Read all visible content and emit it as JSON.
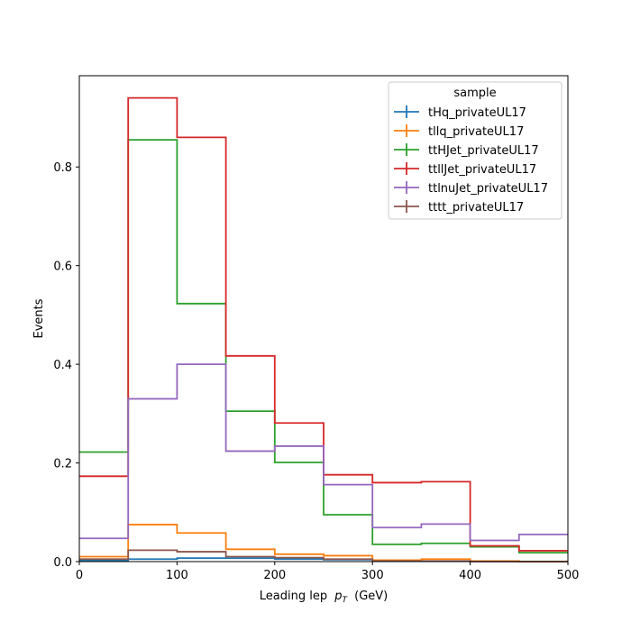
{
  "chart_data": {
    "type": "line",
    "drawstyle": "step-histogram",
    "xlabel": "Leading lep",
    "xlabel_math": "p",
    "xlabel_sub": "T",
    "xlabel_unit": "(GeV)",
    "ylabel": "Events",
    "xlim": [
      0,
      500
    ],
    "ylim": [
      0,
      0.985
    ],
    "xticks": [
      0,
      100,
      200,
      300,
      400,
      500
    ],
    "yticks": [
      0.0,
      0.2,
      0.4,
      0.6,
      0.8
    ],
    "ytick_labels": [
      "0.0",
      "0.2",
      "0.4",
      "0.6",
      "0.8"
    ],
    "bin_edges": [
      0,
      50,
      100,
      150,
      200,
      250,
      300,
      350,
      400,
      450,
      500
    ],
    "grid": false,
    "legend": {
      "title": "sample",
      "placement": "top-right"
    },
    "series": [
      {
        "name": "tHq_privateUL17",
        "color": "#1f77b4",
        "values": [
          0.002,
          0.005,
          0.007,
          0.007,
          0.005,
          0.004,
          0.001,
          0.001,
          0.001,
          0.0
        ]
      },
      {
        "name": "tllq_privateUL17",
        "color": "#ff7f0e",
        "values": [
          0.01,
          0.075,
          0.058,
          0.025,
          0.015,
          0.012,
          0.003,
          0.005,
          0.001,
          0.0
        ]
      },
      {
        "name": "ttHJet_privateUL17",
        "color": "#2ca02c",
        "values": [
          0.222,
          0.855,
          0.523,
          0.305,
          0.201,
          0.095,
          0.035,
          0.037,
          0.03,
          0.018
        ]
      },
      {
        "name": "ttllJet_privateUL17",
        "color": "#d62728",
        "values": [
          0.173,
          0.94,
          0.86,
          0.417,
          0.281,
          0.176,
          0.16,
          0.162,
          0.032,
          0.022
        ]
      },
      {
        "name": "ttlnuJet_privateUL17",
        "color": "#9467bd",
        "values": [
          0.047,
          0.33,
          0.4,
          0.224,
          0.234,
          0.156,
          0.069,
          0.076,
          0.043,
          0.055
        ]
      },
      {
        "name": "tttt_privateUL17",
        "color": "#8c564b",
        "values": [
          0.005,
          0.023,
          0.02,
          0.01,
          0.008,
          0.005,
          0.001,
          0.001,
          0.0,
          0.0
        ]
      }
    ]
  }
}
